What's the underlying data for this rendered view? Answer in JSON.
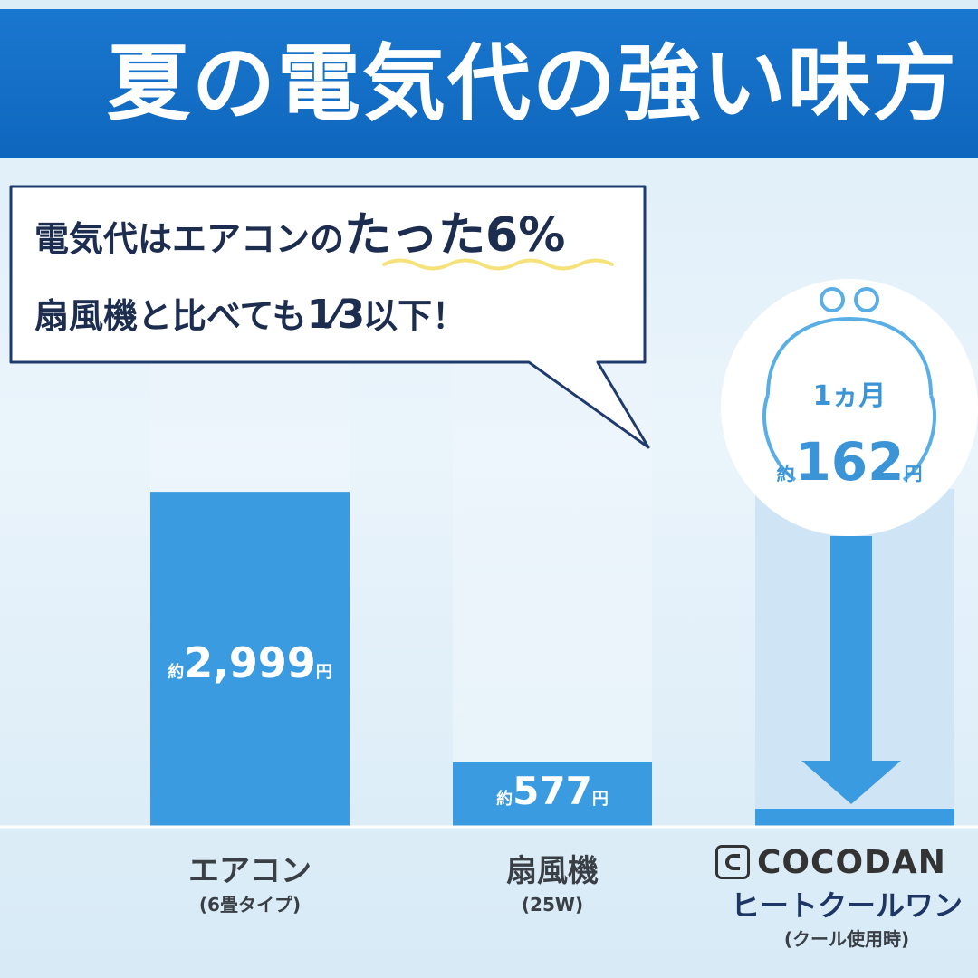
{
  "header": {
    "title": "夏の電気代の強い味方"
  },
  "bubble": {
    "line1_prefix": "電気代はエアコンの",
    "line1_emphasis": "たった6%",
    "line2_prefix": "扇風機と比べても",
    "line2_fraction": "1⁄3",
    "line2_suffix": "以下！"
  },
  "badge": {
    "period": "1ヵ月",
    "prefix": "約",
    "value": "162",
    "unit": "円"
  },
  "products": [
    {
      "name": "エアコン",
      "sub": "(6畳タイプ)"
    },
    {
      "name": "扇風機",
      "sub": "(25W)"
    },
    {
      "brand": "COCODAN",
      "name": "ヒートクールワン",
      "sub": "(クール使用時)"
    }
  ],
  "chart_data": {
    "type": "bar",
    "categories": [
      "エアコン",
      "扇風機",
      "ヒートクールワン"
    ],
    "values": [
      2999,
      577,
      162
    ],
    "value_labels": [
      {
        "prefix": "約",
        "number": "2,999",
        "unit": "円"
      },
      {
        "prefix": "約",
        "number": "577",
        "unit": "円"
      },
      {
        "prefix": "約",
        "number": "162",
        "unit": "円"
      }
    ],
    "ylim": [
      0,
      3000
    ],
    "grid": false,
    "colors": {
      "bar": "#3a9be0",
      "bar_pale": "#cfe5f5",
      "outline": "#1f3b6e",
      "wave": "#f5e27a",
      "accent": "#58aee5"
    }
  }
}
